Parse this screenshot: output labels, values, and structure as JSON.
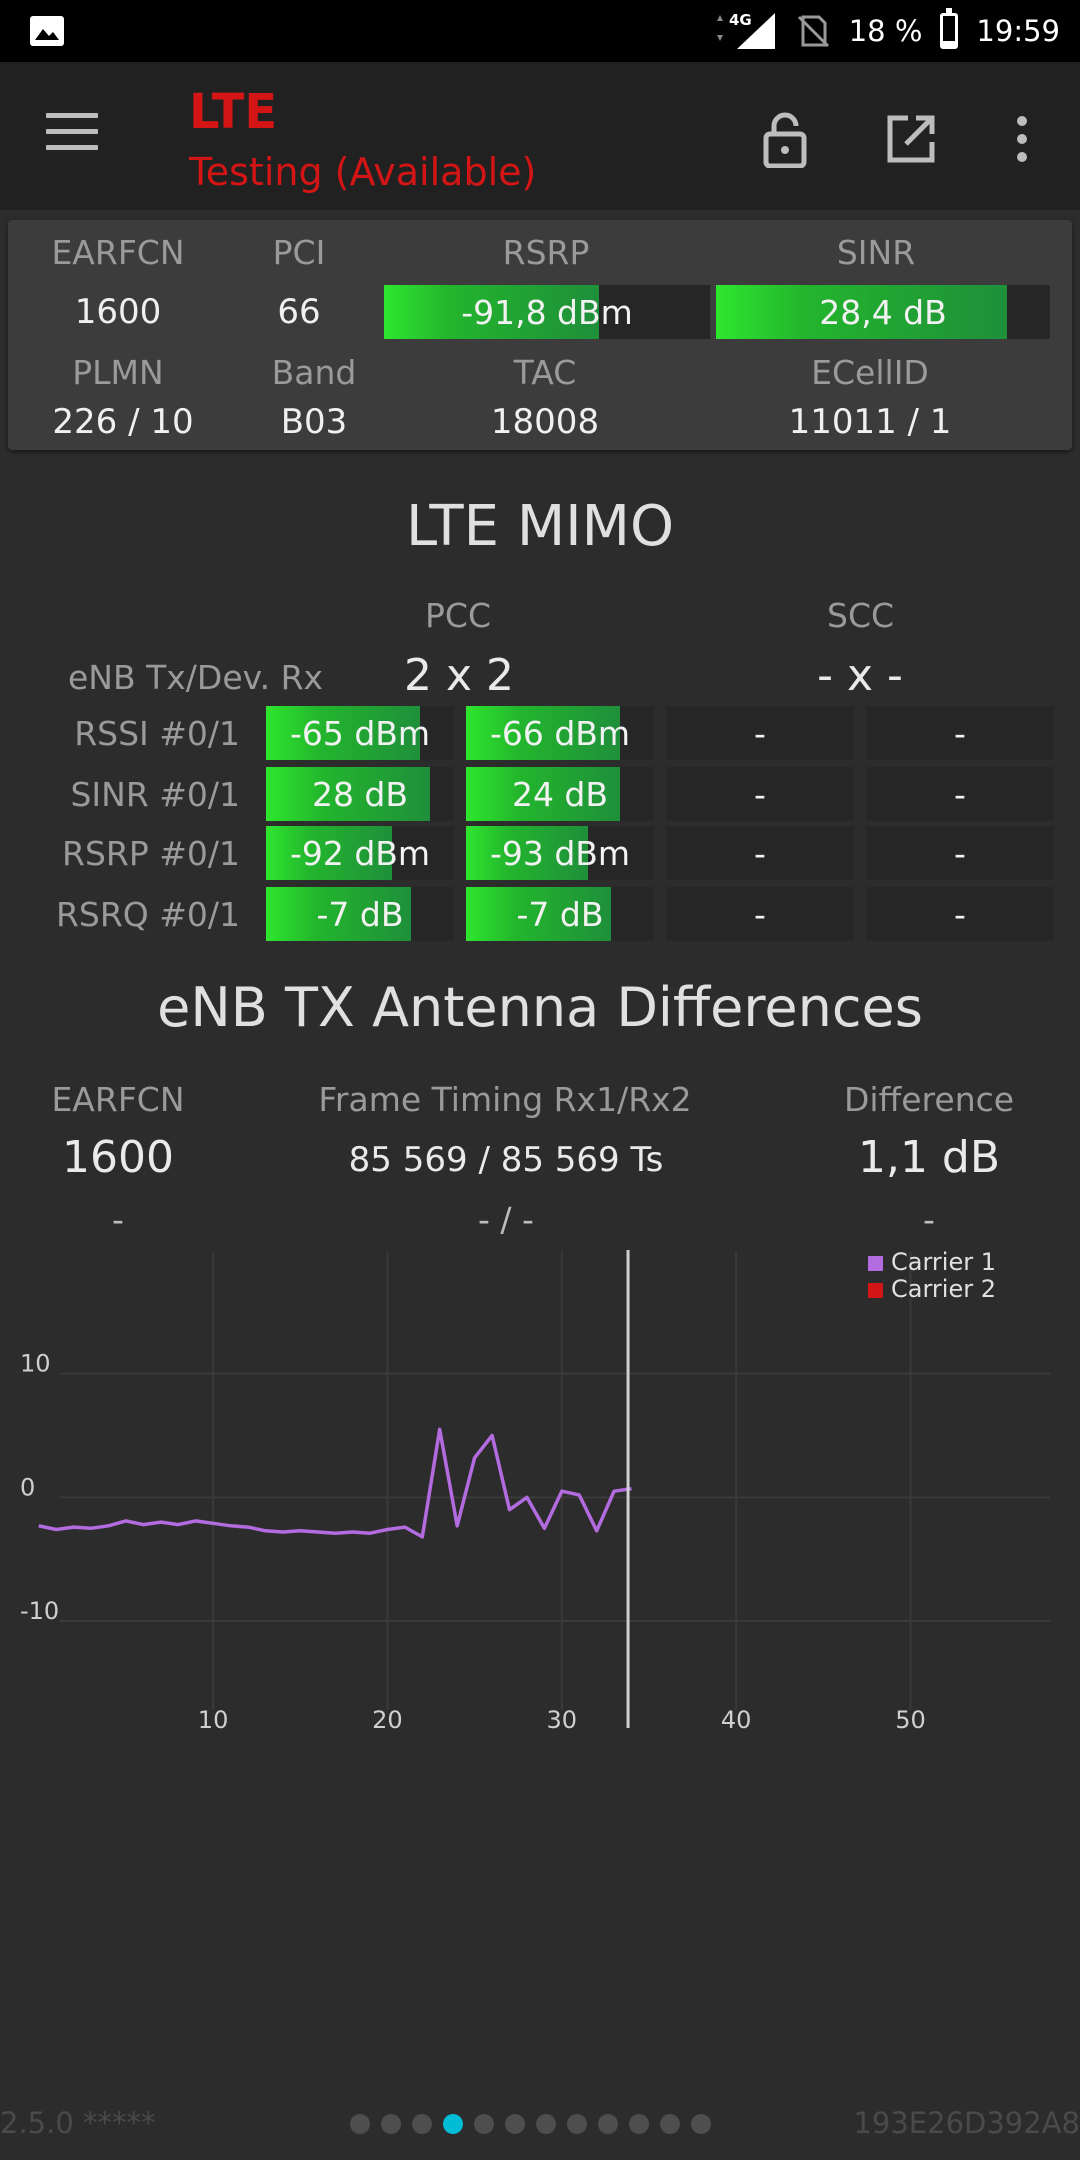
{
  "status_bar": {
    "network": "4G",
    "battery": "18 %",
    "battery_level": 0.18,
    "time": "19:59"
  },
  "app_bar": {
    "title": "LTE",
    "subtitle": "Testing (Available)",
    "accent_color": "#d41515",
    "icons": [
      "menu-icon",
      "lock-icon",
      "open-external-icon",
      "more-vert-icon"
    ]
  },
  "cell_info": {
    "earfcn_label": "EARFCN",
    "earfcn": "1600",
    "pci_label": "PCI",
    "pci": "66",
    "rsrp_label": "RSRP",
    "rsrp": "-91,8 dBm",
    "rsrp_fill": 0.66,
    "sinr_label": "SINR",
    "sinr": "28,4 dB",
    "sinr_fill": 0.87,
    "plmn_label": "PLMN",
    "plmn": "226 / 10",
    "band_label": "Band",
    "band": "B03",
    "tac_label": "TAC",
    "tac": "18008",
    "ecellid_label": "ECellID",
    "ecellid": "11011 / 1"
  },
  "mimo": {
    "title": "LTE MIMO",
    "pcc_label": "PCC",
    "scc_label": "SCC",
    "txrx_label": "eNB Tx/Dev. Rx",
    "pcc_value": "2 x 2",
    "scc_value": "- x -",
    "rows": [
      {
        "label": "RSSI #0/1",
        "cells": [
          {
            "text": "-65 dBm",
            "fill": 0.82
          },
          {
            "text": "-66 dBm",
            "fill": 0.82
          },
          {
            "text": "-",
            "fill": 0
          },
          {
            "text": "-",
            "fill": 0
          }
        ]
      },
      {
        "label": "SINR #0/1",
        "cells": [
          {
            "text": "28 dB",
            "fill": 0.87
          },
          {
            "text": "24 dB",
            "fill": 0.82
          },
          {
            "text": "-",
            "fill": 0
          },
          {
            "text": "-",
            "fill": 0
          }
        ]
      },
      {
        "label": "RSRP #0/1",
        "cells": [
          {
            "text": "-92 dBm",
            "fill": 0.67
          },
          {
            "text": "-93 dBm",
            "fill": 0.65
          },
          {
            "text": "-",
            "fill": 0
          },
          {
            "text": "-",
            "fill": 0
          }
        ]
      },
      {
        "label": "RSRQ #0/1",
        "cells": [
          {
            "text": "-7 dB",
            "fill": 0.77
          },
          {
            "text": "-7 dB",
            "fill": 0.77
          },
          {
            "text": "-",
            "fill": 0
          },
          {
            "text": "-",
            "fill": 0
          }
        ]
      }
    ]
  },
  "antenna": {
    "title": "eNB TX Antenna Differences",
    "earfcn_label": "EARFCN",
    "timing_label": "Frame Timing Rx1/Rx2",
    "difference_label": "Difference",
    "earfcn": "1600",
    "timing": "85 569 / 85 569 Ts",
    "difference": "1,1 dB",
    "earfcn2": "-",
    "timing2": "- / -",
    "difference2": "-"
  },
  "chart_data": {
    "type": "line",
    "x_ticks": [
      "10",
      "20",
      "30",
      "40",
      "50"
    ],
    "y_ticks": [
      "10",
      "0",
      "-10"
    ],
    "xlim": [
      -0.5,
      58
    ],
    "ylim": [
      -18,
      20
    ],
    "cursor_x": 33.8,
    "legend_position": "top-right",
    "series": [
      {
        "name": "Carrier 1",
        "color": "#b36be0",
        "x": [
          0,
          1,
          2,
          3,
          4,
          5,
          6,
          7,
          8,
          9,
          10,
          11,
          12,
          13,
          14,
          15,
          16,
          17,
          18,
          19,
          20,
          21,
          22,
          23,
          24,
          25,
          26,
          27,
          28,
          29,
          30,
          31,
          32,
          33,
          34
        ],
        "y": [
          -2.3,
          -2.6,
          -2.4,
          -2.5,
          -2.3,
          -1.9,
          -2.2,
          -2.0,
          -2.2,
          -1.9,
          -2.1,
          -2.3,
          -2.4,
          -2.7,
          -2.8,
          -2.7,
          -2.8,
          -2.9,
          -2.8,
          -2.9,
          -2.6,
          -2.4,
          -3.2,
          5.5,
          -2.3,
          3.2,
          5.0,
          -1.0,
          0.0,
          -2.5,
          0.5,
          0.2,
          -2.7,
          0.5,
          0.7
        ]
      },
      {
        "name": "Carrier 2",
        "color": "#d41515",
        "x": [],
        "y": []
      }
    ]
  },
  "footer": {
    "version": "2.5.0 *****",
    "device_id": "193E26D392A8",
    "pages": 12,
    "active_page": 4
  }
}
